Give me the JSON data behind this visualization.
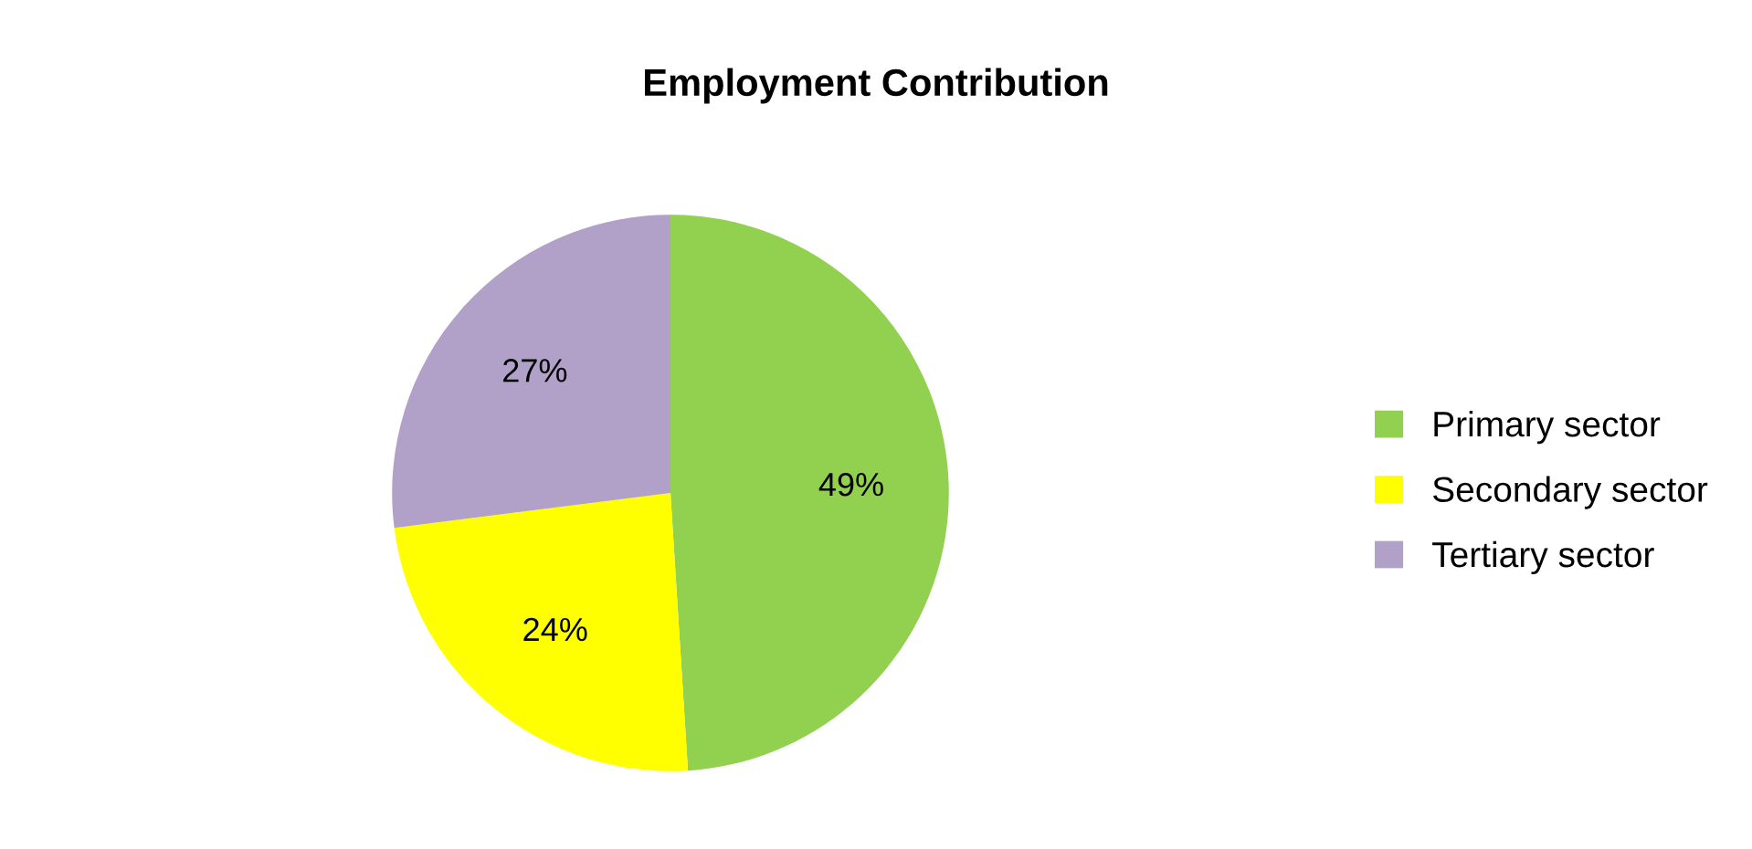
{
  "chart_data": {
    "type": "pie",
    "title": "Employment Contribution",
    "categories": [
      "Primary sector",
      "Secondary sector",
      "Tertiary sector"
    ],
    "values": [
      49,
      24,
      27
    ],
    "colors": [
      "#92d050",
      "#ffff00",
      "#b1a0c7"
    ],
    "value_labels": [
      "49%",
      "24%",
      "27%"
    ],
    "legend": "right"
  }
}
